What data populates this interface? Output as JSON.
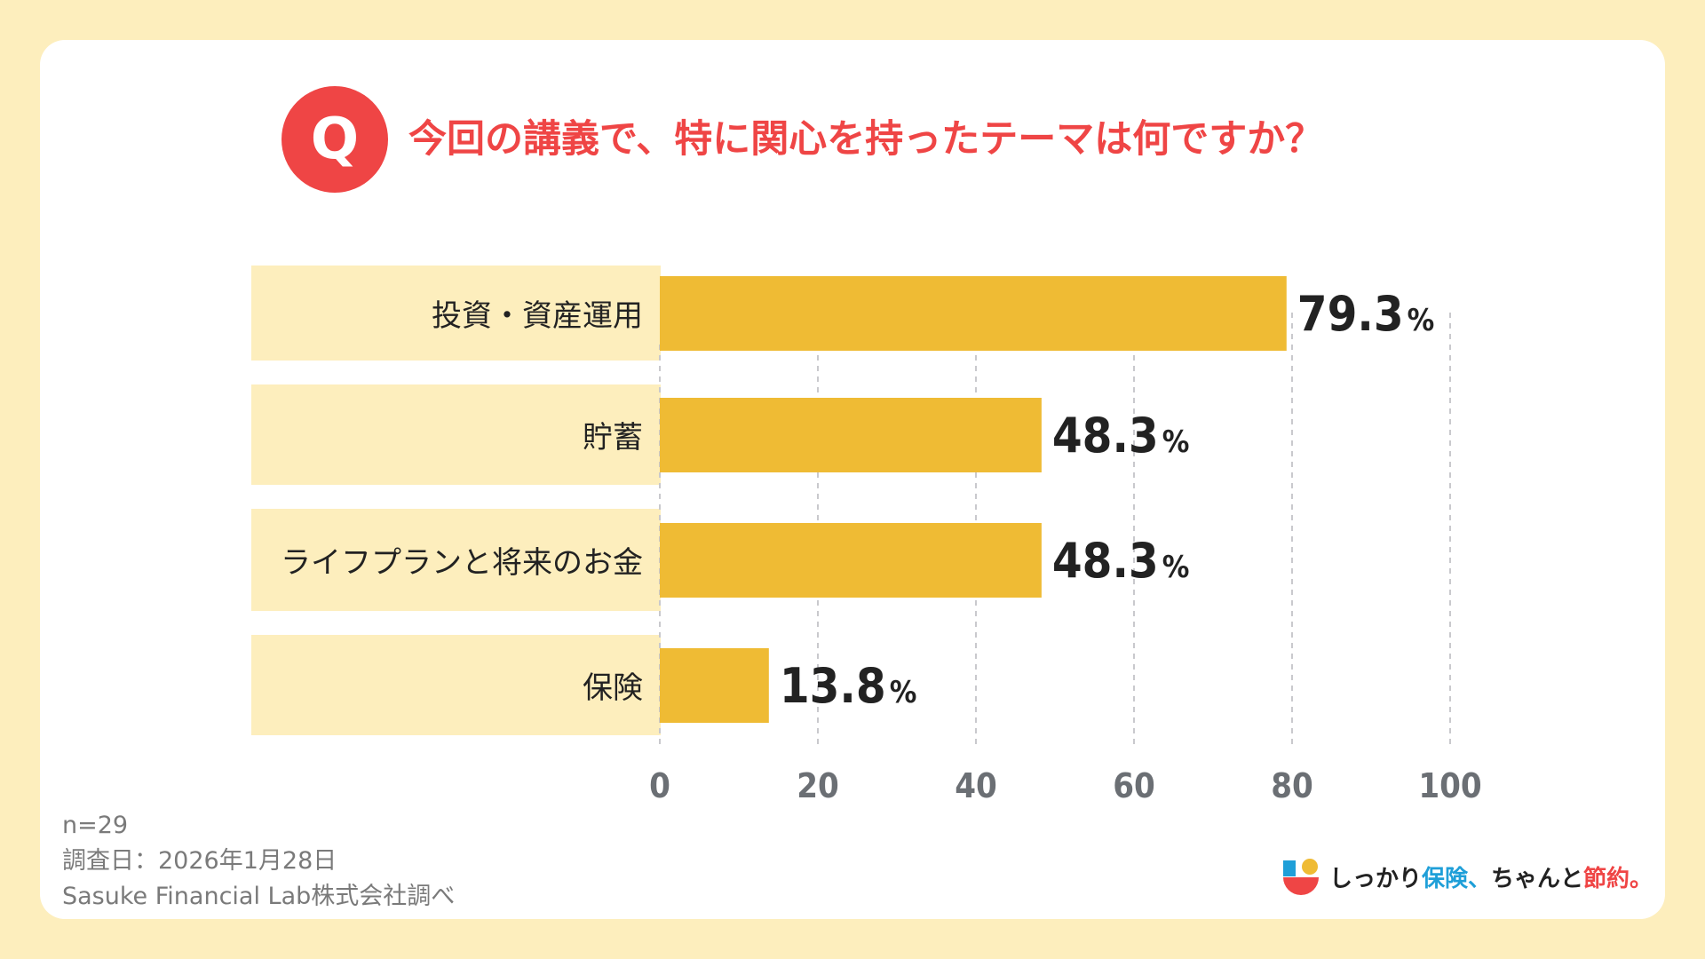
{
  "title": "今回の講義で、特に関心を持ったテーマは何ですか？",
  "q_badge": "Q",
  "colors": {
    "accent": "#ef4545",
    "bar": "#efbb34",
    "label_bg": "#fdeebd",
    "grid": "#c9c9cd"
  },
  "chart_data": {
    "type": "bar",
    "orientation": "horizontal",
    "categories": [
      "投資・資産運用",
      "貯蓄",
      "ライフプランと将来のお金",
      "保険"
    ],
    "values": [
      79.3,
      48.3,
      48.3,
      13.8
    ],
    "value_labels": [
      "79.3",
      "48.3",
      "48.3",
      "13.8"
    ],
    "unit": "%",
    "xlim": [
      0,
      100
    ],
    "xticks": [
      0,
      20,
      40,
      60,
      80,
      100
    ],
    "grid": true,
    "title": "今回の講義で、特に関心を持ったテーマは何ですか？"
  },
  "footnote": {
    "sample": "n=29",
    "date": "調査日：2026年1月28日",
    "source": "Sasuke Financial Lab株式会社調べ"
  },
  "brand": {
    "part1": "しっかり",
    "part2": "保険、",
    "part3": "ちゃんと",
    "part4": "節約。"
  }
}
